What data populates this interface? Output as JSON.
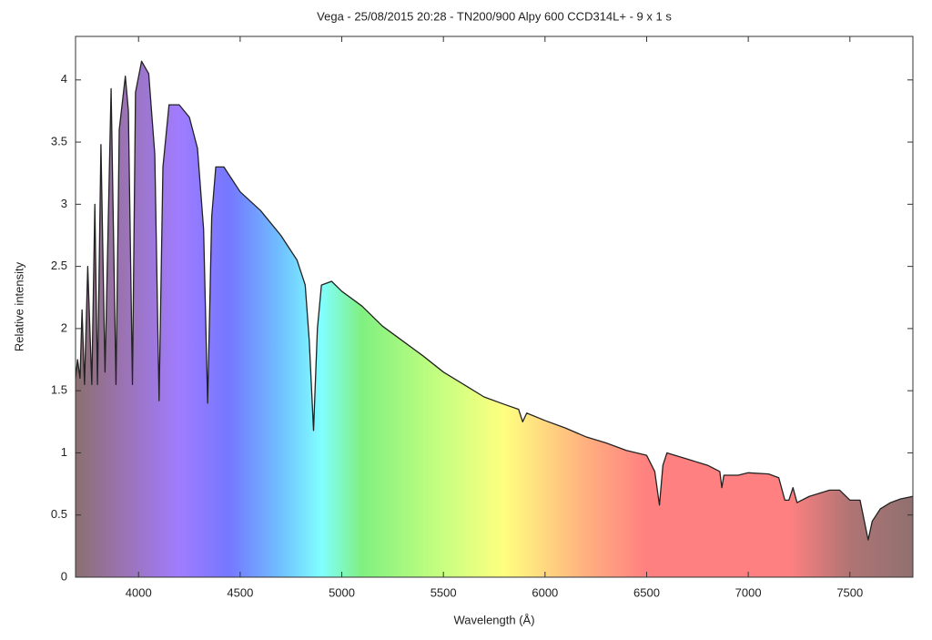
{
  "chart_data": {
    "type": "line",
    "title": "Vega - 25/08/2015 20:28 - TN200/900 Alpy 600 CCD314L+ - 9 x 1 s",
    "x_label": "Wavelength (Å)",
    "y_label": "Relative intensity",
    "x": [
      3690,
      3700,
      3712,
      3722,
      3734,
      3750,
      3770,
      3785,
      3798,
      3815,
      3835,
      3865,
      3889,
      3905,
      3935,
      3950,
      3970,
      3985,
      4015,
      4050,
      4080,
      4101,
      4120,
      4150,
      4200,
      4250,
      4290,
      4320,
      4340,
      4360,
      4380,
      4420,
      4500,
      4600,
      4700,
      4780,
      4820,
      4840,
      4861,
      4880,
      4900,
      4950,
      5000,
      5100,
      5200,
      5300,
      5400,
      5500,
      5600,
      5700,
      5800,
      5870,
      5890,
      5910,
      6000,
      6100,
      6200,
      6300,
      6400,
      6500,
      6540,
      6563,
      6580,
      6600,
      6700,
      6800,
      6860,
      6870,
      6880,
      6950,
      7000,
      7100,
      7150,
      7180,
      7200,
      7220,
      7240,
      7300,
      7400,
      7450,
      7500,
      7550,
      7590,
      7610,
      7650,
      7700,
      7750,
      7810
    ],
    "values": [
      1.6,
      1.75,
      1.6,
      2.15,
      1.55,
      2.5,
      1.55,
      3.0,
      1.55,
      3.48,
      1.65,
      3.93,
      1.55,
      3.6,
      4.03,
      3.75,
      1.55,
      3.9,
      4.15,
      4.05,
      3.4,
      1.42,
      3.3,
      3.8,
      3.8,
      3.7,
      3.45,
      2.8,
      1.4,
      2.9,
      3.3,
      3.3,
      3.1,
      2.95,
      2.75,
      2.55,
      2.35,
      1.9,
      1.18,
      2.0,
      2.35,
      2.38,
      2.3,
      2.18,
      2.02,
      1.9,
      1.78,
      1.65,
      1.55,
      1.45,
      1.39,
      1.35,
      1.25,
      1.32,
      1.26,
      1.2,
      1.13,
      1.08,
      1.02,
      0.98,
      0.85,
      0.58,
      0.9,
      1.0,
      0.95,
      0.9,
      0.85,
      0.72,
      0.82,
      0.82,
      0.84,
      0.83,
      0.8,
      0.62,
      0.62,
      0.72,
      0.6,
      0.65,
      0.7,
      0.7,
      0.62,
      0.62,
      0.3,
      0.45,
      0.55,
      0.6,
      0.63,
      0.65
    ],
    "color": "#222222",
    "xlim": [
      3690,
      7810
    ],
    "ylim": [
      0,
      4.35
    ],
    "xticks": [
      4000,
      4500,
      5000,
      5500,
      6000,
      6500,
      7000,
      7500
    ],
    "yticks": [
      0,
      0.5,
      1,
      1.5,
      2,
      2.5,
      3,
      3.5,
      4
    ],
    "grid": false
  }
}
